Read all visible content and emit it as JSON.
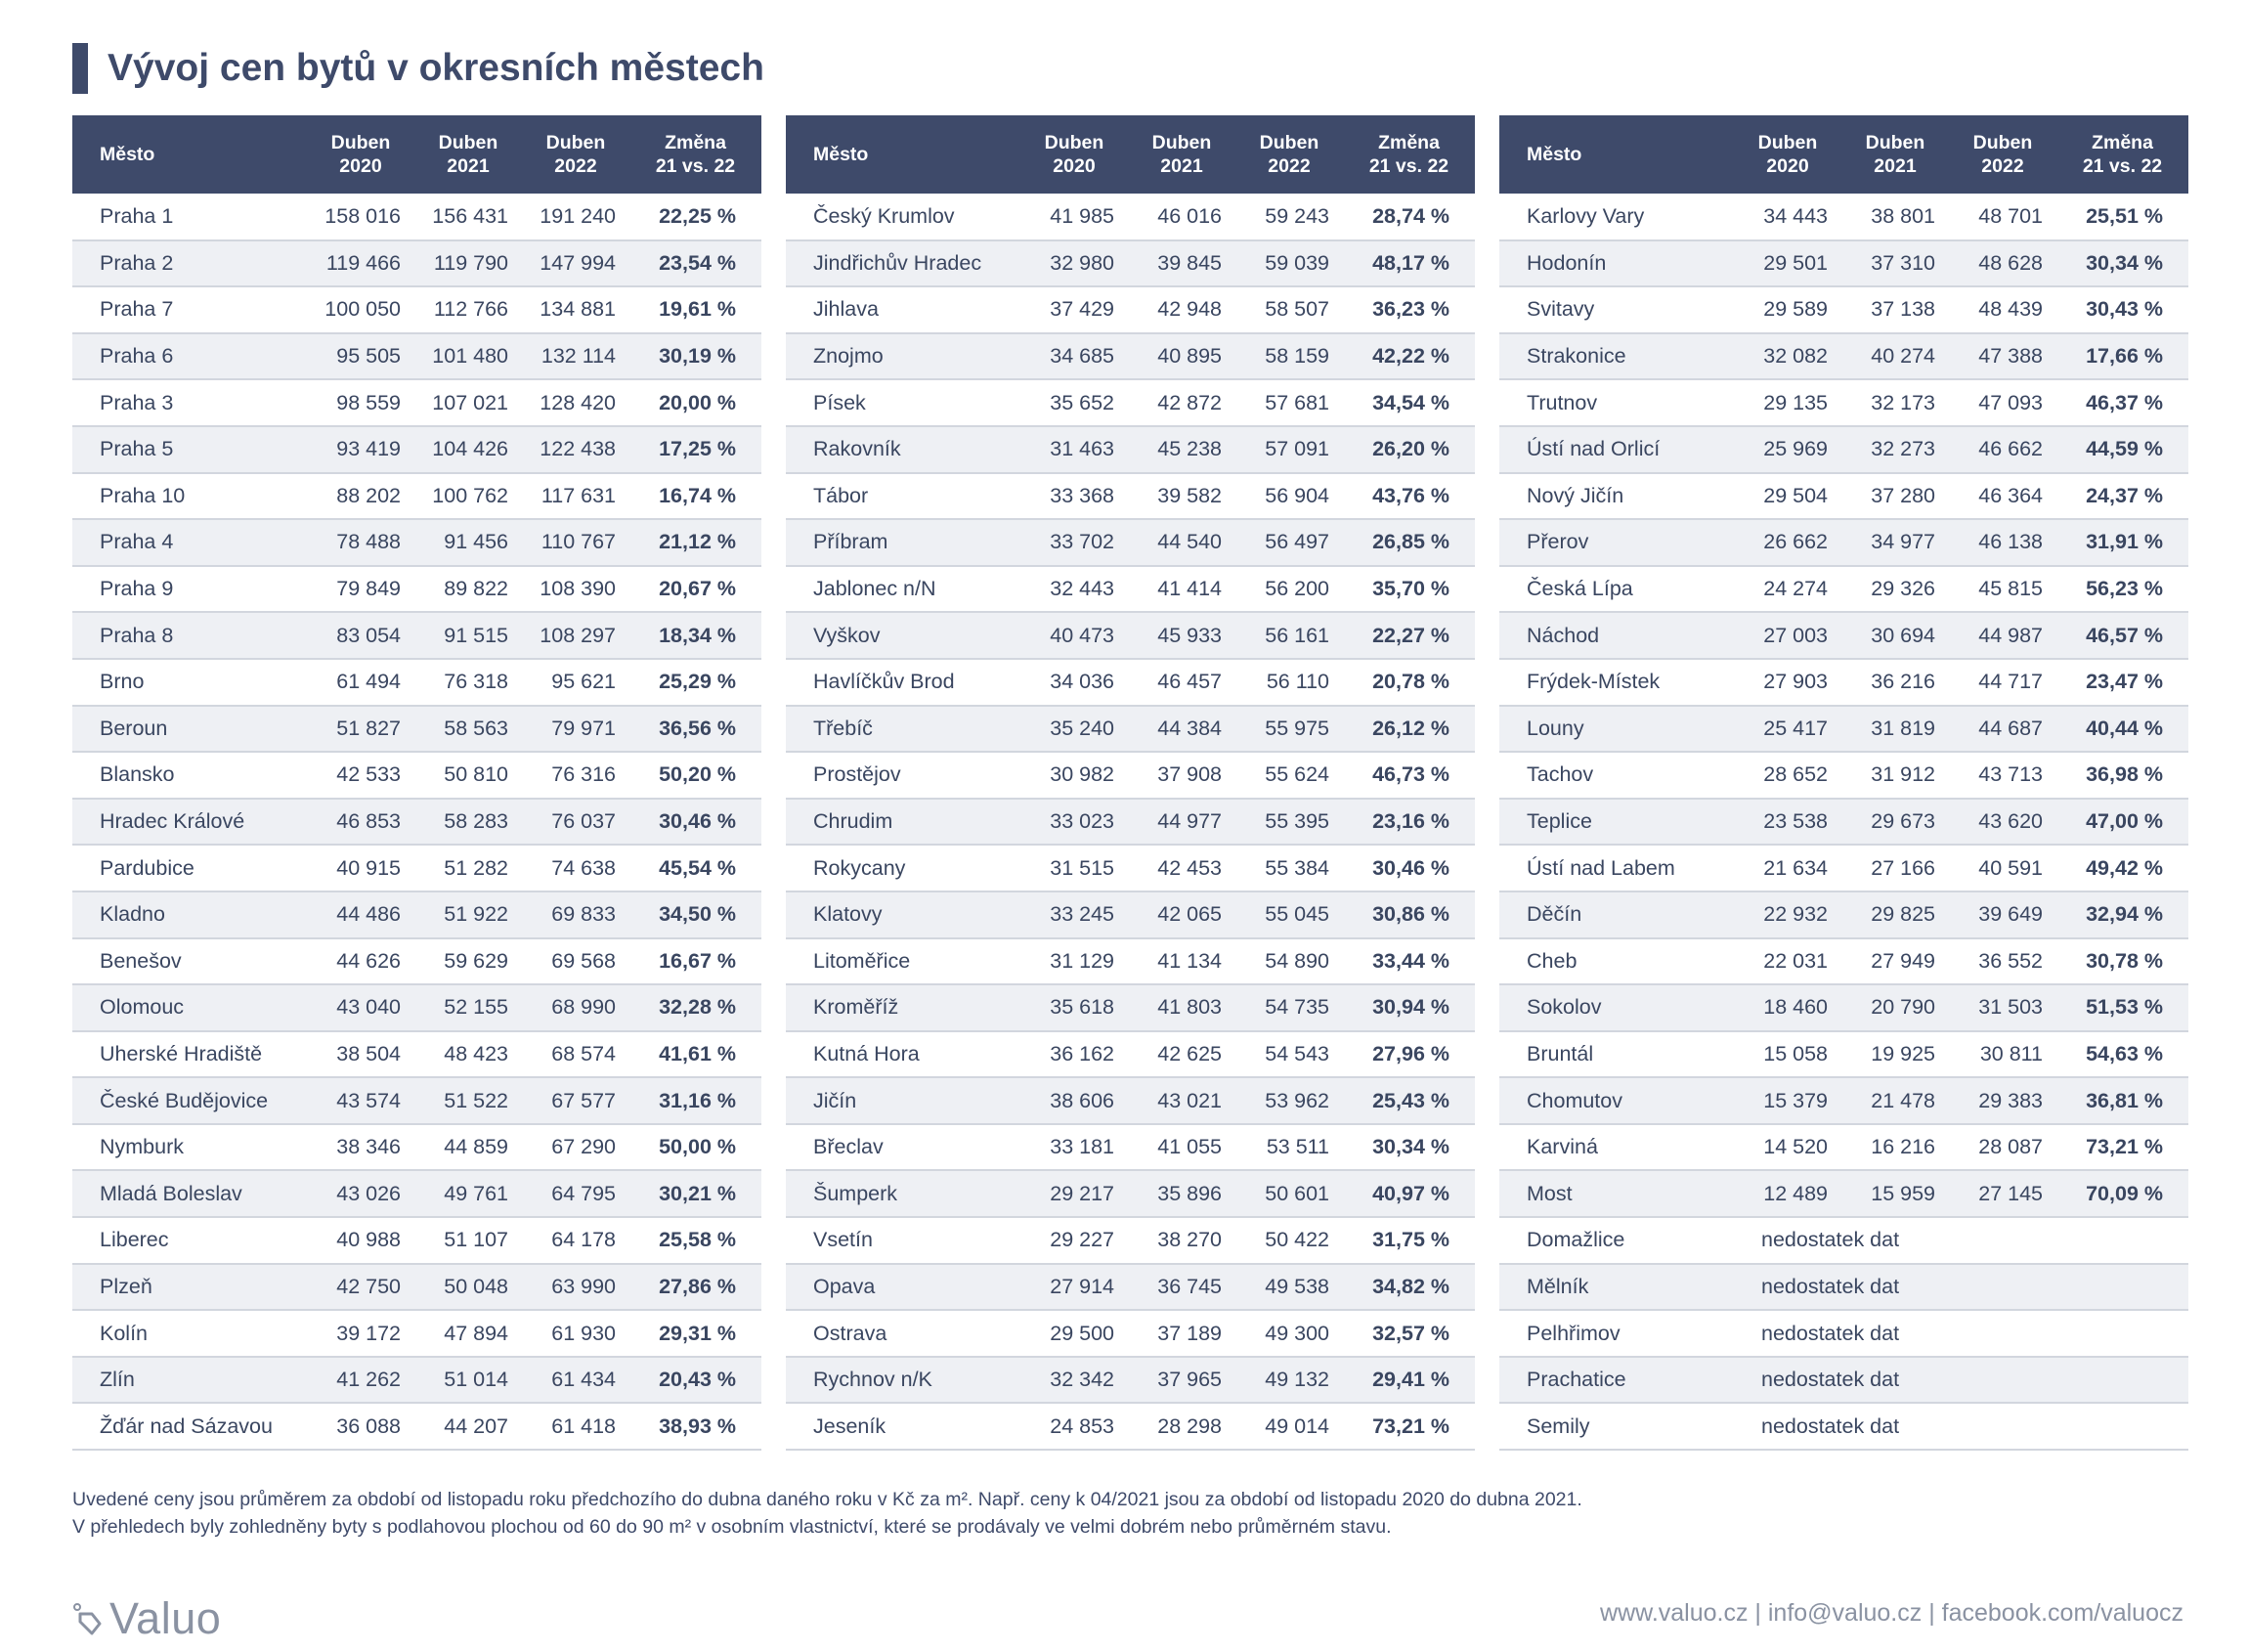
{
  "title": "Vývoj cen bytů v okresních městech",
  "headers": {
    "city": "Město",
    "y2020": "Duben\n2020",
    "y2021": "Duben\n2021",
    "y2022": "Duben\n2022",
    "change": "Změna\n21 vs. 22"
  },
  "tables": [
    {
      "rows": [
        {
          "city": "Praha 1",
          "v2020": "158 016",
          "v2021": "156 431",
          "v2022": "191 240",
          "change": "22,25 %"
        },
        {
          "city": "Praha 2",
          "v2020": "119 466",
          "v2021": "119 790",
          "v2022": "147 994",
          "change": "23,54 %"
        },
        {
          "city": "Praha 7",
          "v2020": "100 050",
          "v2021": "112 766",
          "v2022": "134 881",
          "change": "19,61 %"
        },
        {
          "city": "Praha 6",
          "v2020": "95 505",
          "v2021": "101 480",
          "v2022": "132 114",
          "change": "30,19 %"
        },
        {
          "city": "Praha 3",
          "v2020": "98 559",
          "v2021": "107 021",
          "v2022": "128 420",
          "change": "20,00 %"
        },
        {
          "city": "Praha 5",
          "v2020": "93 419",
          "v2021": "104 426",
          "v2022": "122 438",
          "change": "17,25 %"
        },
        {
          "city": "Praha 10",
          "v2020": "88 202",
          "v2021": "100 762",
          "v2022": "117 631",
          "change": "16,74 %"
        },
        {
          "city": "Praha 4",
          "v2020": "78 488",
          "v2021": "91 456",
          "v2022": "110 767",
          "change": "21,12 %"
        },
        {
          "city": "Praha 9",
          "v2020": "79 849",
          "v2021": "89 822",
          "v2022": "108 390",
          "change": "20,67 %"
        },
        {
          "city": "Praha 8",
          "v2020": "83 054",
          "v2021": "91 515",
          "v2022": "108 297",
          "change": "18,34 %"
        },
        {
          "city": "Brno",
          "v2020": "61 494",
          "v2021": "76 318",
          "v2022": "95 621",
          "change": "25,29 %"
        },
        {
          "city": "Beroun",
          "v2020": "51 827",
          "v2021": "58 563",
          "v2022": "79 971",
          "change": "36,56 %"
        },
        {
          "city": "Blansko",
          "v2020": "42 533",
          "v2021": "50 810",
          "v2022": "76 316",
          "change": "50,20 %"
        },
        {
          "city": "Hradec Králové",
          "v2020": "46 853",
          "v2021": "58 283",
          "v2022": "76 037",
          "change": "30,46 %"
        },
        {
          "city": "Pardubice",
          "v2020": "40 915",
          "v2021": "51 282",
          "v2022": "74 638",
          "change": "45,54 %"
        },
        {
          "city": "Kladno",
          "v2020": "44 486",
          "v2021": "51 922",
          "v2022": "69 833",
          "change": "34,50 %"
        },
        {
          "city": "Benešov",
          "v2020": "44 626",
          "v2021": "59 629",
          "v2022": "69 568",
          "change": "16,67 %"
        },
        {
          "city": "Olomouc",
          "v2020": "43 040",
          "v2021": "52 155",
          "v2022": "68 990",
          "change": "32,28 %"
        },
        {
          "city": "Uherské Hradiště",
          "v2020": "38 504",
          "v2021": "48 423",
          "v2022": "68 574",
          "change": "41,61 %"
        },
        {
          "city": "České Budějovice",
          "v2020": "43 574",
          "v2021": "51 522",
          "v2022": "67 577",
          "change": "31,16 %"
        },
        {
          "city": "Nymburk",
          "v2020": "38 346",
          "v2021": "44 859",
          "v2022": "67 290",
          "change": "50,00 %"
        },
        {
          "city": "Mladá Boleslav",
          "v2020": "43 026",
          "v2021": "49 761",
          "v2022": "64 795",
          "change": "30,21 %"
        },
        {
          "city": "Liberec",
          "v2020": "40 988",
          "v2021": "51 107",
          "v2022": "64 178",
          "change": "25,58 %"
        },
        {
          "city": "Plzeň",
          "v2020": "42 750",
          "v2021": "50 048",
          "v2022": "63 990",
          "change": "27,86 %"
        },
        {
          "city": "Kolín",
          "v2020": "39 172",
          "v2021": "47 894",
          "v2022": "61 930",
          "change": "29,31 %"
        },
        {
          "city": "Zlín",
          "v2020": "41 262",
          "v2021": "51 014",
          "v2022": "61 434",
          "change": "20,43 %"
        },
        {
          "city": "Žďár nad Sázavou",
          "v2020": "36 088",
          "v2021": "44 207",
          "v2022": "61 418",
          "change": "38,93 %"
        }
      ]
    },
    {
      "rows": [
        {
          "city": "Český Krumlov",
          "v2020": "41 985",
          "v2021": "46 016",
          "v2022": "59 243",
          "change": "28,74 %"
        },
        {
          "city": "Jindřichův Hradec",
          "v2020": "32 980",
          "v2021": "39 845",
          "v2022": "59 039",
          "change": "48,17 %"
        },
        {
          "city": "Jihlava",
          "v2020": "37 429",
          "v2021": "42 948",
          "v2022": "58 507",
          "change": "36,23 %"
        },
        {
          "city": "Znojmo",
          "v2020": "34 685",
          "v2021": "40 895",
          "v2022": "58 159",
          "change": "42,22 %"
        },
        {
          "city": "Písek",
          "v2020": "35 652",
          "v2021": "42 872",
          "v2022": "57 681",
          "change": "34,54 %"
        },
        {
          "city": "Rakovník",
          "v2020": "31 463",
          "v2021": "45 238",
          "v2022": "57 091",
          "change": "26,20 %"
        },
        {
          "city": "Tábor",
          "v2020": "33 368",
          "v2021": "39 582",
          "v2022": "56 904",
          "change": "43,76 %"
        },
        {
          "city": "Příbram",
          "v2020": "33 702",
          "v2021": "44 540",
          "v2022": "56 497",
          "change": "26,85 %"
        },
        {
          "city": "Jablonec n/N",
          "v2020": "32 443",
          "v2021": "41 414",
          "v2022": "56 200",
          "change": "35,70 %"
        },
        {
          "city": "Vyškov",
          "v2020": "40 473",
          "v2021": "45 933",
          "v2022": "56 161",
          "change": "22,27 %"
        },
        {
          "city": "Havlíčkův Brod",
          "v2020": "34 036",
          "v2021": "46 457",
          "v2022": "56 110",
          "change": "20,78 %"
        },
        {
          "city": "Třebíč",
          "v2020": "35 240",
          "v2021": "44 384",
          "v2022": "55 975",
          "change": "26,12 %"
        },
        {
          "city": "Prostějov",
          "v2020": "30 982",
          "v2021": "37 908",
          "v2022": "55 624",
          "change": "46,73 %"
        },
        {
          "city": "Chrudim",
          "v2020": "33 023",
          "v2021": "44 977",
          "v2022": "55 395",
          "change": "23,16 %"
        },
        {
          "city": "Rokycany",
          "v2020": "31 515",
          "v2021": "42 453",
          "v2022": "55 384",
          "change": "30,46 %"
        },
        {
          "city": "Klatovy",
          "v2020": "33 245",
          "v2021": "42 065",
          "v2022": "55 045",
          "change": "30,86 %"
        },
        {
          "city": "Litoměřice",
          "v2020": "31 129",
          "v2021": "41 134",
          "v2022": "54 890",
          "change": "33,44 %"
        },
        {
          "city": "Kroměříž",
          "v2020": "35 618",
          "v2021": "41 803",
          "v2022": "54 735",
          "change": "30,94 %"
        },
        {
          "city": "Kutná Hora",
          "v2020": "36 162",
          "v2021": "42 625",
          "v2022": "54 543",
          "change": "27,96 %"
        },
        {
          "city": "Jičín",
          "v2020": "38 606",
          "v2021": "43 021",
          "v2022": "53 962",
          "change": "25,43 %"
        },
        {
          "city": "Břeclav",
          "v2020": "33 181",
          "v2021": "41 055",
          "v2022": "53 511",
          "change": "30,34 %"
        },
        {
          "city": "Šumperk",
          "v2020": "29 217",
          "v2021": "35 896",
          "v2022": "50 601",
          "change": "40,97 %"
        },
        {
          "city": "Vsetín",
          "v2020": "29 227",
          "v2021": "38 270",
          "v2022": "50 422",
          "change": "31,75 %"
        },
        {
          "city": "Opava",
          "v2020": "27 914",
          "v2021": "36 745",
          "v2022": "49 538",
          "change": "34,82 %"
        },
        {
          "city": "Ostrava",
          "v2020": "29 500",
          "v2021": "37 189",
          "v2022": "49 300",
          "change": "32,57 %"
        },
        {
          "city": "Rychnov n/K",
          "v2020": "32 342",
          "v2021": "37 965",
          "v2022": "49 132",
          "change": "29,41 %"
        },
        {
          "city": "Jeseník",
          "v2020": "24 853",
          "v2021": "28 298",
          "v2022": "49 014",
          "change": "73,21 %"
        }
      ]
    },
    {
      "rows": [
        {
          "city": "Karlovy Vary",
          "v2020": "34 443",
          "v2021": "38 801",
          "v2022": "48 701",
          "change": "25,51 %"
        },
        {
          "city": "Hodonín",
          "v2020": "29 501",
          "v2021": "37 310",
          "v2022": "48 628",
          "change": "30,34 %"
        },
        {
          "city": "Svitavy",
          "v2020": "29 589",
          "v2021": "37 138",
          "v2022": "48 439",
          "change": "30,43 %"
        },
        {
          "city": "Strakonice",
          "v2020": "32 082",
          "v2021": "40 274",
          "v2022": "47 388",
          "change": "17,66 %"
        },
        {
          "city": "Trutnov",
          "v2020": "29 135",
          "v2021": "32 173",
          "v2022": "47 093",
          "change": "46,37 %"
        },
        {
          "city": "Ústí nad Orlicí",
          "v2020": "25 969",
          "v2021": "32 273",
          "v2022": "46 662",
          "change": "44,59 %"
        },
        {
          "city": "Nový Jičín",
          "v2020": "29 504",
          "v2021": "37 280",
          "v2022": "46 364",
          "change": "24,37 %"
        },
        {
          "city": "Přerov",
          "v2020": "26 662",
          "v2021": "34 977",
          "v2022": "46 138",
          "change": "31,91 %"
        },
        {
          "city": "Česká Lípa",
          "v2020": "24 274",
          "v2021": "29 326",
          "v2022": "45 815",
          "change": "56,23 %"
        },
        {
          "city": "Náchod",
          "v2020": "27 003",
          "v2021": "30 694",
          "v2022": "44 987",
          "change": "46,57 %"
        },
        {
          "city": "Frýdek-Místek",
          "v2020": "27 903",
          "v2021": "36 216",
          "v2022": "44 717",
          "change": "23,47 %"
        },
        {
          "city": "Louny",
          "v2020": "25 417",
          "v2021": "31 819",
          "v2022": "44 687",
          "change": "40,44 %"
        },
        {
          "city": "Tachov",
          "v2020": "28 652",
          "v2021": "31 912",
          "v2022": "43 713",
          "change": "36,98 %"
        },
        {
          "city": "Teplice",
          "v2020": "23 538",
          "v2021": "29 673",
          "v2022": "43 620",
          "change": "47,00 %"
        },
        {
          "city": "Ústí nad Labem",
          "v2020": "21 634",
          "v2021": "27 166",
          "v2022": "40 591",
          "change": "49,42 %"
        },
        {
          "city": "Děčín",
          "v2020": "22 932",
          "v2021": "29 825",
          "v2022": "39 649",
          "change": "32,94 %"
        },
        {
          "city": "Cheb",
          "v2020": "22 031",
          "v2021": "27 949",
          "v2022": "36 552",
          "change": "30,78 %"
        },
        {
          "city": "Sokolov",
          "v2020": "18 460",
          "v2021": "20 790",
          "v2022": "31 503",
          "change": "51,53 %"
        },
        {
          "city": "Bruntál",
          "v2020": "15 058",
          "v2021": "19 925",
          "v2022": "30 811",
          "change": "54,63 %"
        },
        {
          "city": "Chomutov",
          "v2020": "15 379",
          "v2021": "21 478",
          "v2022": "29 383",
          "change": "36,81 %"
        },
        {
          "city": "Karviná",
          "v2020": "14 520",
          "v2021": "16 216",
          "v2022": "28 087",
          "change": "73,21 %"
        },
        {
          "city": "Most",
          "v2020": "12 489",
          "v2021": "15 959",
          "v2022": "27 145",
          "change": "70,09 %"
        },
        {
          "city": "Domažlice",
          "na": "nedostatek dat"
        },
        {
          "city": "Mělník",
          "na": "nedostatek dat"
        },
        {
          "city": "Pelhřimov",
          "na": "nedostatek dat"
        },
        {
          "city": "Prachatice",
          "na": "nedostatek dat"
        },
        {
          "city": "Semily",
          "na": "nedostatek dat"
        }
      ]
    }
  ],
  "notes": [
    "Uvedené ceny jsou průměrem za období od listopadu roku předchozího do dubna daného roku v Kč za m². Např. ceny k 04/2021 jsou za období od listopadu 2020 do dubna 2021.",
    "V přehledech byly zohledněny byty s podlahovou plochou od 60 do 90 m² v osobním vlastnictví, které se prodávaly ve velmi dobrém nebo průměrném stavu."
  ],
  "logo": {
    "text": "Valuo",
    "icon": "tag-icon"
  },
  "footer_links": "www.valuo.cz | info@valuo.cz | facebook.com/valuocz",
  "colors": {
    "header_bg": "#3e4a6a",
    "change_green": "#3fae2f",
    "stripe": "#eef0f4"
  }
}
